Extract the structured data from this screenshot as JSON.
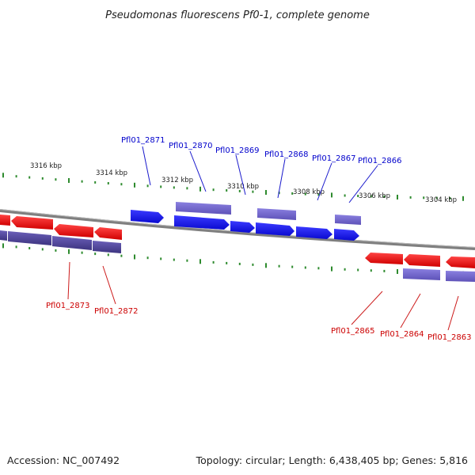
{
  "title": "Pseudomonas fluorescens Pf0-1, complete genome",
  "footer": {
    "accession": "Accession: NC_007492",
    "summary": "Topology: circular; Length: 6,438,405 bp; Genes: 5,816"
  },
  "colors": {
    "backbone": "#8a8a8a",
    "tick": "#2e8b2e",
    "forward_cds": "#1a1aff",
    "forward_gene": "#7b6fd6",
    "reverse_cds": "#ff1a1a",
    "reverse_gene": "#5a4fa6",
    "forward_label": "#0000cc",
    "reverse_label": "#cc0000"
  },
  "scale": {
    "kbp_labels": [
      "3316 kbp",
      "3314 kbp",
      "3312 kbp",
      "3310 kbp",
      "3308 kbp",
      "3306 kbp",
      "3304 kbp"
    ]
  },
  "genes": {
    "forward": [
      "Pfl01_2871",
      "Pfl01_2870",
      "Pfl01_2869",
      "Pfl01_2868",
      "Pfl01_2867",
      "Pfl01_2866"
    ],
    "reverse": [
      "Pfl01_2873",
      "Pfl01_2872",
      "Pfl01_2865",
      "Pfl01_2864",
      "Pfl01_2863"
    ]
  }
}
